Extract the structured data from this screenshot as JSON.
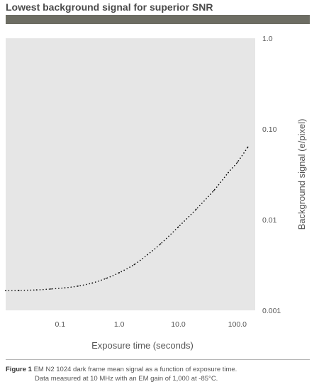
{
  "chart_data": {
    "type": "line",
    "title": "Lowest background signal for superior SNR",
    "xlabel": "Exposure time (seconds)",
    "ylabel": "Background signal (e/pixel)",
    "x_scale": "log",
    "y_scale": "log",
    "xlim": [
      0.012,
      200
    ],
    "ylim": [
      0.001,
      1.0
    ],
    "x_ticks": [
      "0.1",
      "1.0",
      "10.0",
      "100.0"
    ],
    "y_ticks": [
      "1.0",
      "0.10",
      "0.01",
      "0.001"
    ],
    "y_axis_side": "right",
    "grid": false,
    "background": "#e6e6e6",
    "line_style": "dotted",
    "line_color": "#111111",
    "series": [
      {
        "name": "",
        "x": [
          0.012,
          0.02,
          0.04,
          0.07,
          0.12,
          0.2,
          0.35,
          0.6,
          1.0,
          1.8,
          3,
          5,
          10,
          20,
          40,
          70,
          100,
          150
        ],
        "y": [
          0.00165,
          0.00166,
          0.00168,
          0.00172,
          0.00177,
          0.00185,
          0.002,
          0.00225,
          0.0026,
          0.0032,
          0.0041,
          0.0054,
          0.0083,
          0.013,
          0.021,
          0.033,
          0.043,
          0.063
        ]
      }
    ]
  },
  "caption": {
    "label": "Figure 1",
    "line1": "EM N2 1024 dark frame mean signal as a function of exposure time.",
    "line2": "Data measured at 10 MHz with an EM gain of 1,000 at -85°C."
  }
}
